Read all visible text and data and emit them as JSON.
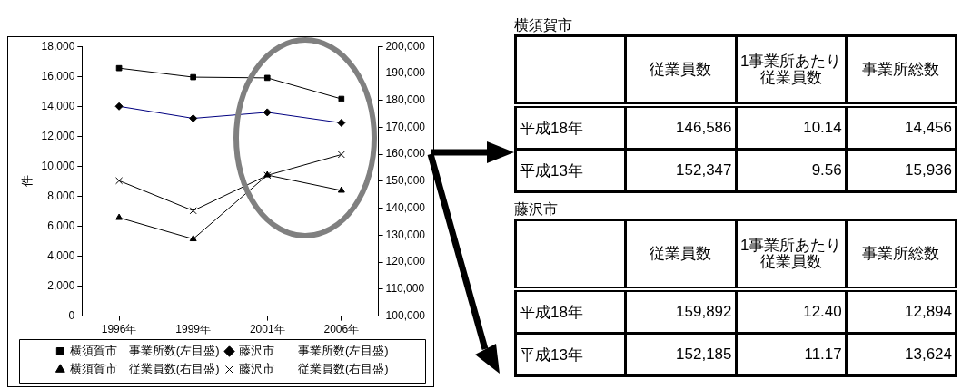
{
  "chart_data": [
    {
      "type": "line",
      "ylabel": "件",
      "categories": [
        "1996年",
        "1999年",
        "2001年",
        "2006年"
      ],
      "ylim": [
        0,
        18000
      ],
      "yticks": [
        0,
        {
          "value": 2000,
          "label": "2,000"
        },
        {
          "value": 4000,
          "label": "4,000"
        },
        {
          "value": 6000,
          "label": "6,000"
        },
        {
          "value": 8000,
          "label": "8,000"
        },
        {
          "value": 10000,
          "label": "10,000"
        },
        {
          "value": 12000,
          "label": "12,000"
        },
        {
          "value": 14000,
          "label": "14,000"
        },
        {
          "value": 16000,
          "label": "16,000"
        },
        {
          "value": 18000,
          "label": "18,000"
        }
      ],
      "y2lim": [
        100000,
        200000
      ],
      "y2ticks": [
        {
          "value": 100000,
          "label": "100,000"
        },
        {
          "value": 110000,
          "label": "110,000"
        },
        {
          "value": 120000,
          "label": "120,000"
        },
        {
          "value": 130000,
          "label": "130,000"
        },
        {
          "value": 140000,
          "label": "140,000"
        },
        {
          "value": 150000,
          "label": "150,000"
        },
        {
          "value": 160000,
          "label": "160,000"
        },
        {
          "value": 170000,
          "label": "170,000"
        },
        {
          "value": 180000,
          "label": "180,000"
        },
        {
          "value": 190000,
          "label": "190,000"
        },
        {
          "value": 200000,
          "label": "200,000"
        }
      ],
      "grid": false,
      "legend": "bottom",
      "line_style": "solid",
      "series": [
        {
          "name": "横須賀市　事業所数(左目盛)",
          "color": "#000000",
          "marker": "square",
          "values": [
            16550,
            15950,
            15900,
            14500
          ]
        },
        {
          "name": "藤沢市　　事業所数(左目盛)",
          "color": "#000080",
          "marker": "diamond",
          "values": [
            14000,
            13200,
            13600,
            12900
          ]
        },
        {
          "name": "横須賀市　従業員数(右目盛)",
          "color": "#000000",
          "marker": "triangle",
          "axis": "y2",
          "values": [
            136500,
            128600,
            152300,
            146600
          ]
        },
        {
          "name": "藤沢市　　従業員数(右目盛)",
          "color": "#000000",
          "marker": "cross",
          "axis": "y2",
          "values": [
            150200,
            139100,
            152200,
            159900
          ]
        }
      ]
    },
    {
      "type": "other",
      "title": "横須賀市",
      "categories": [
        "従業員数",
        "1事業所あたり従業員数",
        "事業所総数"
      ],
      "y_categories": [
        "平成18年",
        "平成13年"
      ],
      "cell_labels": [
        [
          "146,586",
          "10.14",
          "14,456"
        ],
        [
          "152,347",
          "9.56",
          "15,936"
        ]
      ]
    },
    {
      "type": "other",
      "title": "藤沢市",
      "categories": [
        "従業員数",
        "1事業所あたり従業員数",
        "事業所総数"
      ],
      "y_categories": [
        "平成18年",
        "平成13年"
      ],
      "cell_labels": [
        [
          "159,892",
          "12.40",
          "12,894"
        ],
        [
          "152,185",
          "11.17",
          "13,624"
        ]
      ]
    }
  ]
}
